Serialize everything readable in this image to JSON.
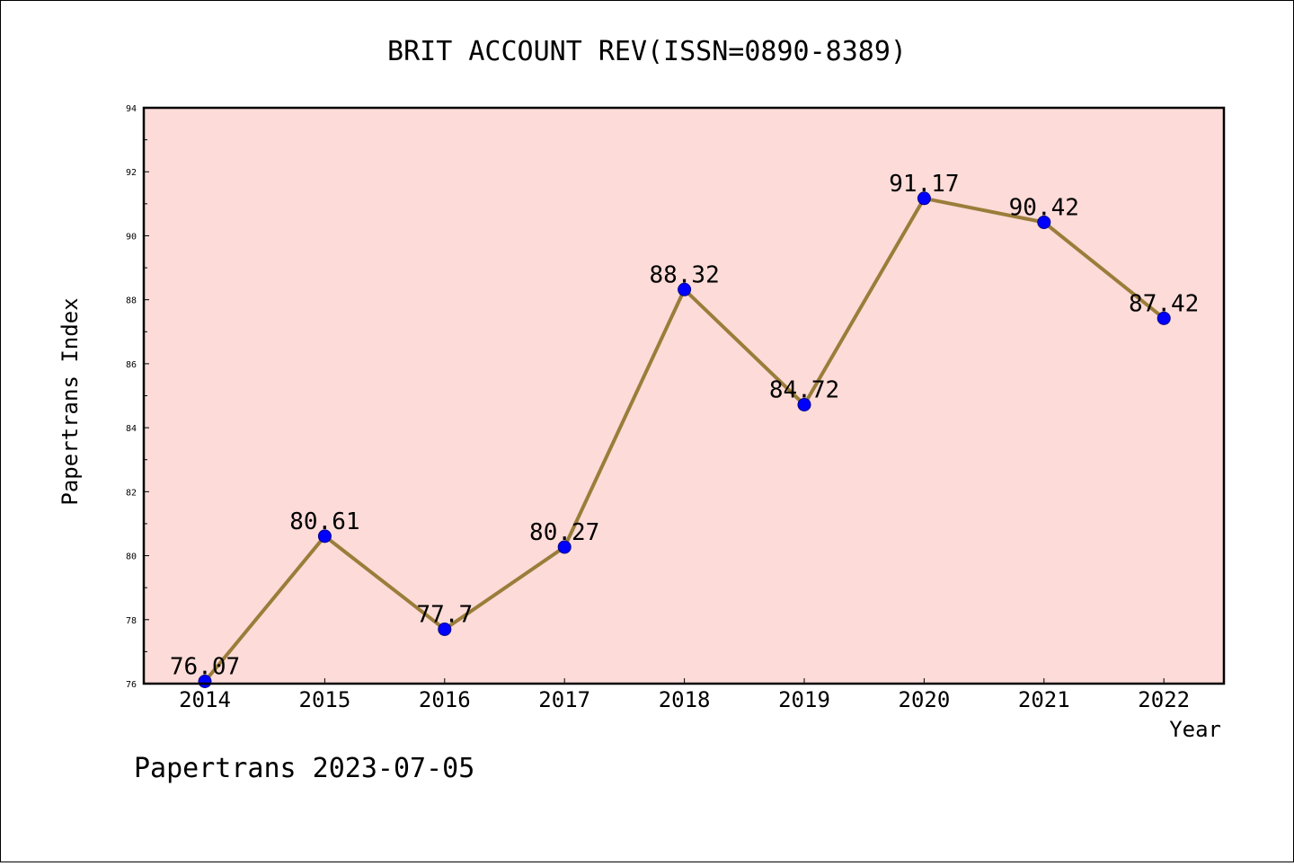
{
  "chart_data": {
    "type": "line",
    "title": "BRIT ACCOUNT REV(ISSN=0890-8389)",
    "xlabel": "Year",
    "ylabel": "Papertrans Index",
    "categories": [
      "2014",
      "2015",
      "2016",
      "2017",
      "2018",
      "2019",
      "2020",
      "2021",
      "2022"
    ],
    "values": [
      76.07,
      80.61,
      77.7,
      80.27,
      88.32,
      84.72,
      91.17,
      90.42,
      87.42
    ],
    "data_labels": [
      "76.07",
      "80.61",
      "77.7",
      "80.27",
      "88.32",
      "84.72",
      "91.17",
      "90.42",
      "87.42"
    ],
    "ylim": [
      76,
      94
    ],
    "yticks": [
      76,
      78,
      80,
      82,
      84,
      86,
      88,
      90,
      92,
      94
    ],
    "grid": false,
    "colors": {
      "plot_background": "#fddbd8",
      "line": "#9a7d3a",
      "marker": "#0000ff"
    }
  },
  "footer": {
    "text": "Papertrans 2023-07-05"
  }
}
